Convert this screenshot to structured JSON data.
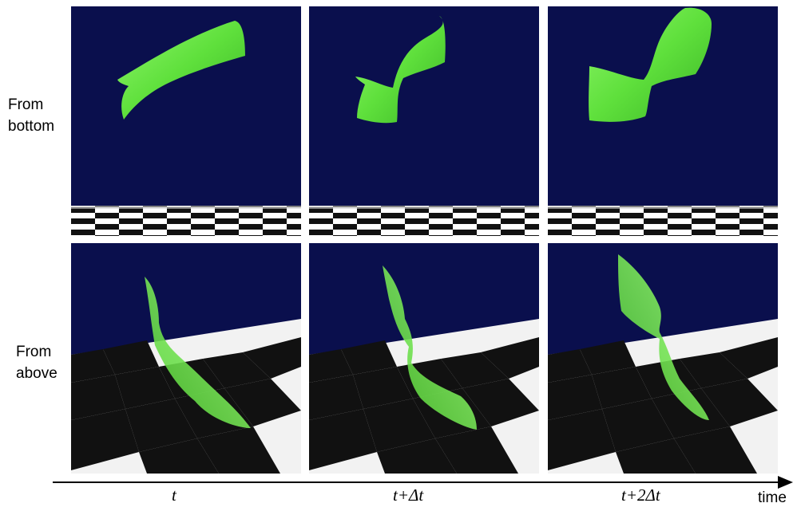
{
  "rows": [
    {
      "label_line1": "From",
      "label_line2": "bottom"
    },
    {
      "label_line1": "From",
      "label_line2": "above"
    }
  ],
  "columns": [
    "t",
    "t+Δt",
    "t+2Δt"
  ],
  "axis": {
    "label": "time"
  },
  "colors": {
    "sky": "#0a0f4d",
    "ribbon": "#6fe84a",
    "ribbon_dark": "#3fb52a",
    "checker_dark": "#000000",
    "checker_light": "#ffffff"
  }
}
